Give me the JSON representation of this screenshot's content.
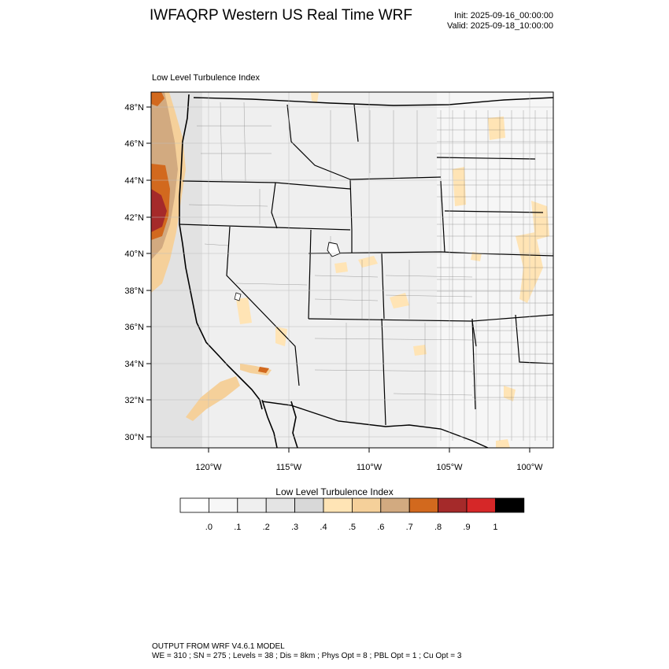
{
  "header": {
    "title": "IWFAQRP Western US Real Time WRF",
    "init": "Init: 2025-09-16_00:00:00",
    "valid": "Valid: 2025-09-18_10:00:00",
    "subtitle": "Low Level Turbulence Index"
  },
  "map": {
    "lat_labels": [
      "48°N",
      "46°N",
      "44°N",
      "42°N",
      "40°N",
      "38°N",
      "36°N",
      "34°N",
      "32°N",
      "30°N"
    ],
    "lon_labels": [
      "120°W",
      "115°W",
      "110°W",
      "105°W",
      "100°W"
    ]
  },
  "colorbar": {
    "title": "Low Level Turbulence Index",
    "colors": [
      "#ffffff",
      "#f7f7f7",
      "#efefef",
      "#e4e4e4",
      "#d8d8d8",
      "#ffe4b5",
      "#f5d09a",
      "#d2aa80",
      "#d2691e",
      "#a52a2a",
      "#d62728",
      "#000000"
    ],
    "labels": [
      ".0",
      ".1",
      ".2",
      ".3",
      ".4",
      ".5",
      ".6",
      ".7",
      ".8",
      ".9",
      "1"
    ]
  },
  "footer": {
    "line1": "OUTPUT FROM WRF V4.6.1 MODEL",
    "line2": "WE = 310 ; SN = 275 ; Levels = 38 ; Dis = 8km ; Phys Opt = 8 ; PBL Opt = 1 ; Cu Opt = 3"
  }
}
